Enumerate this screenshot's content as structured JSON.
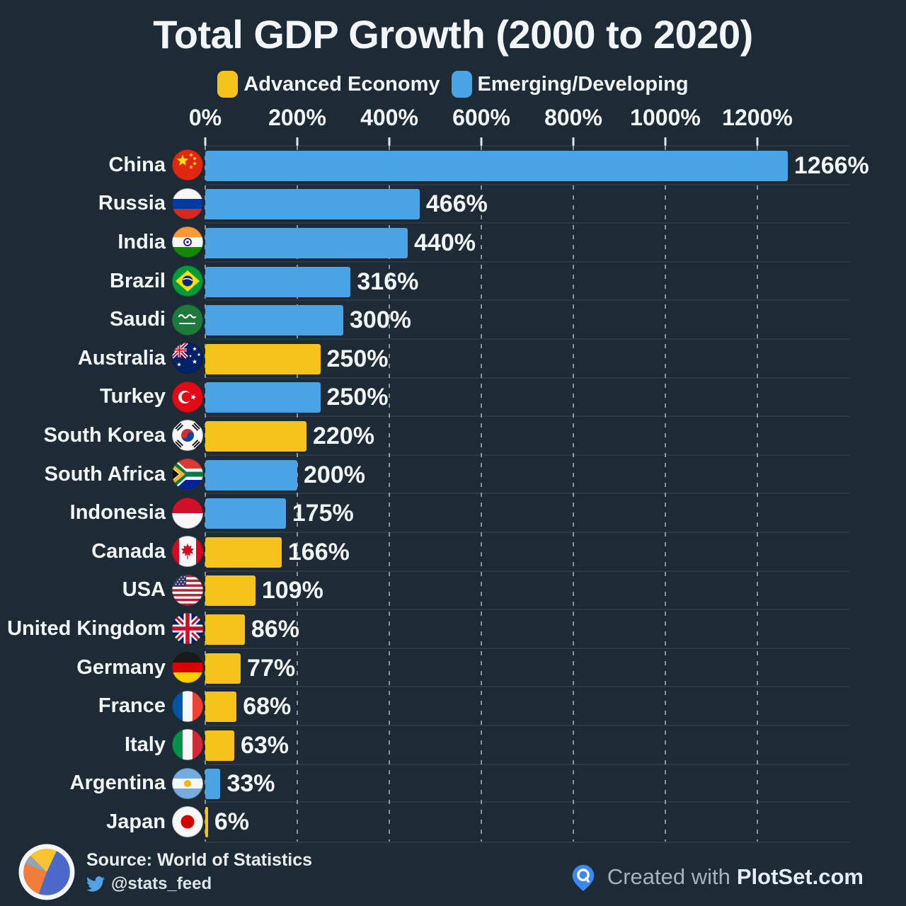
{
  "title": "Total GDP Growth (2000 to 2020)",
  "legend": [
    {
      "key": "advanced",
      "label": "Advanced Economy",
      "color": "#f6c21c"
    },
    {
      "key": "emerging",
      "label": "Emerging/Developing",
      "color": "#4aa4e4"
    }
  ],
  "chart_data": {
    "type": "bar",
    "orientation": "horizontal",
    "title": "Total GDP Growth (2000 to 2020)",
    "x_tick_labels": [
      "0%",
      "200%",
      "400%",
      "600%",
      "800%",
      "1000%",
      "1200%"
    ],
    "x_tick_values": [
      0,
      200,
      400,
      600,
      800,
      1000,
      1200
    ],
    "xlim": [
      0,
      1400
    ],
    "grid": "vertical-dashed",
    "legend_position": "top",
    "rows": [
      {
        "country": "China",
        "flag": "china",
        "category": "emerging",
        "value": 1266,
        "label": "1266%"
      },
      {
        "country": "Russia",
        "flag": "russia",
        "category": "emerging",
        "value": 466,
        "label": "466%"
      },
      {
        "country": "India",
        "flag": "india",
        "category": "emerging",
        "value": 440,
        "label": "440%"
      },
      {
        "country": "Brazil",
        "flag": "brazil",
        "category": "emerging",
        "value": 316,
        "label": "316%"
      },
      {
        "country": "Saudi",
        "flag": "saudi-arabia",
        "category": "emerging",
        "value": 300,
        "label": "300%"
      },
      {
        "country": "Australia",
        "flag": "australia",
        "category": "advanced",
        "value": 250,
        "label": "250%"
      },
      {
        "country": "Turkey",
        "flag": "turkey",
        "category": "emerging",
        "value": 250,
        "label": "250%"
      },
      {
        "country": "South Korea",
        "flag": "south-korea",
        "category": "advanced",
        "value": 220,
        "label": "220%"
      },
      {
        "country": "South Africa",
        "flag": "south-africa",
        "category": "emerging",
        "value": 200,
        "label": "200%"
      },
      {
        "country": "Indonesia",
        "flag": "indonesia",
        "category": "emerging",
        "value": 175,
        "label": "175%"
      },
      {
        "country": "Canada",
        "flag": "canada",
        "category": "advanced",
        "value": 166,
        "label": "166%"
      },
      {
        "country": "USA",
        "flag": "usa",
        "category": "advanced",
        "value": 109,
        "label": "109%"
      },
      {
        "country": "United Kingdom",
        "flag": "united-kingdom",
        "category": "advanced",
        "value": 86,
        "label": "86%"
      },
      {
        "country": "Germany",
        "flag": "germany",
        "category": "advanced",
        "value": 77,
        "label": "77%"
      },
      {
        "country": "France",
        "flag": "france",
        "category": "advanced",
        "value": 68,
        "label": "68%"
      },
      {
        "country": "Italy",
        "flag": "italy",
        "category": "advanced",
        "value": 63,
        "label": "63%"
      },
      {
        "country": "Argentina",
        "flag": "argentina",
        "category": "emerging",
        "value": 33,
        "label": "33%"
      },
      {
        "country": "Japan",
        "flag": "japan",
        "category": "advanced",
        "value": 6,
        "label": "6%"
      }
    ]
  },
  "colors": {
    "background": "#1d2b36",
    "advanced": "#f6c21c",
    "emerging": "#4aa4e4",
    "text": "#f2f6f8",
    "gridline": "#a0afba"
  },
  "footer": {
    "source_line": "Source: World of Statistics",
    "twitter_handle": "@stats_feed",
    "created_with": "Created with",
    "brand": "PlotSet.com"
  },
  "icons": {
    "source_logo": "pie-chart-logo",
    "twitter": "twitter-bird-icon",
    "plotset": "plotset-pin-icon"
  }
}
